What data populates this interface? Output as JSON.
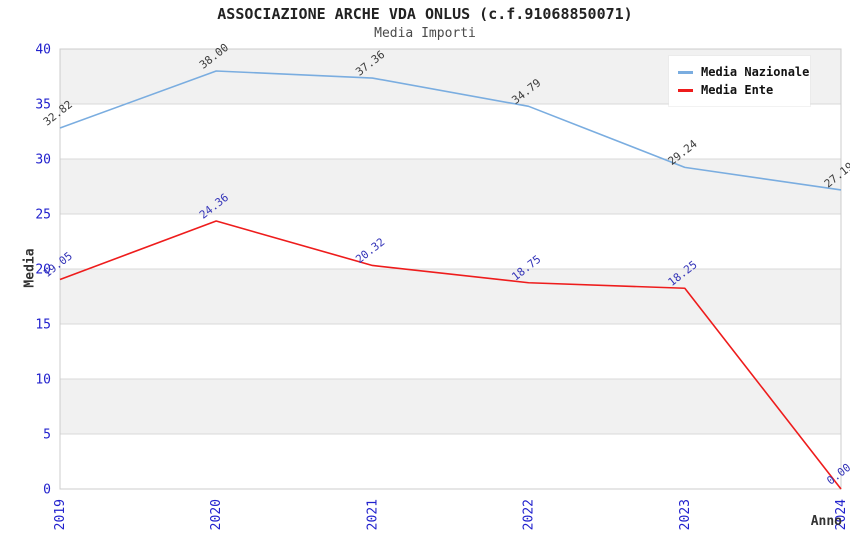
{
  "chart_data": {
    "type": "line",
    "title": "ASSOCIAZIONE ARCHE VDA ONLUS (c.f.91068850071)",
    "subtitle": "Media Importi",
    "xlabel": "Anno",
    "ylabel": "Media",
    "categories": [
      "2019",
      "2020",
      "2021",
      "2022",
      "2023",
      "2024"
    ],
    "series": [
      {
        "name": "Media Nazionale",
        "color": "#7aade0",
        "label_color": "#3c3c3c",
        "values": [
          32.82,
          38.0,
          37.36,
          34.79,
          29.24,
          27.19
        ],
        "labels": [
          "32.82",
          "38.00",
          "37.36",
          "34.79",
          "29.24",
          "27.19"
        ]
      },
      {
        "name": "Media Ente",
        "color": "#ee1c1c",
        "label_color": "#3434b8",
        "values": [
          19.05,
          24.36,
          20.32,
          18.75,
          18.25,
          0.0
        ],
        "labels": [
          "19.05",
          "24.36",
          "20.32",
          "18.75",
          "18.25",
          "0.00"
        ]
      }
    ],
    "ylim": [
      0,
      40
    ],
    "yticks": [
      0,
      5,
      10,
      15,
      20,
      25,
      30,
      35,
      40
    ],
    "grid": "horizontal-bands",
    "legend_position": "top-right",
    "colors": {
      "tick_label": "#2121cd",
      "band_fill": "#f1f1f1",
      "gridline": "#d9d9d9",
      "plot_border": "#cccccc"
    }
  }
}
